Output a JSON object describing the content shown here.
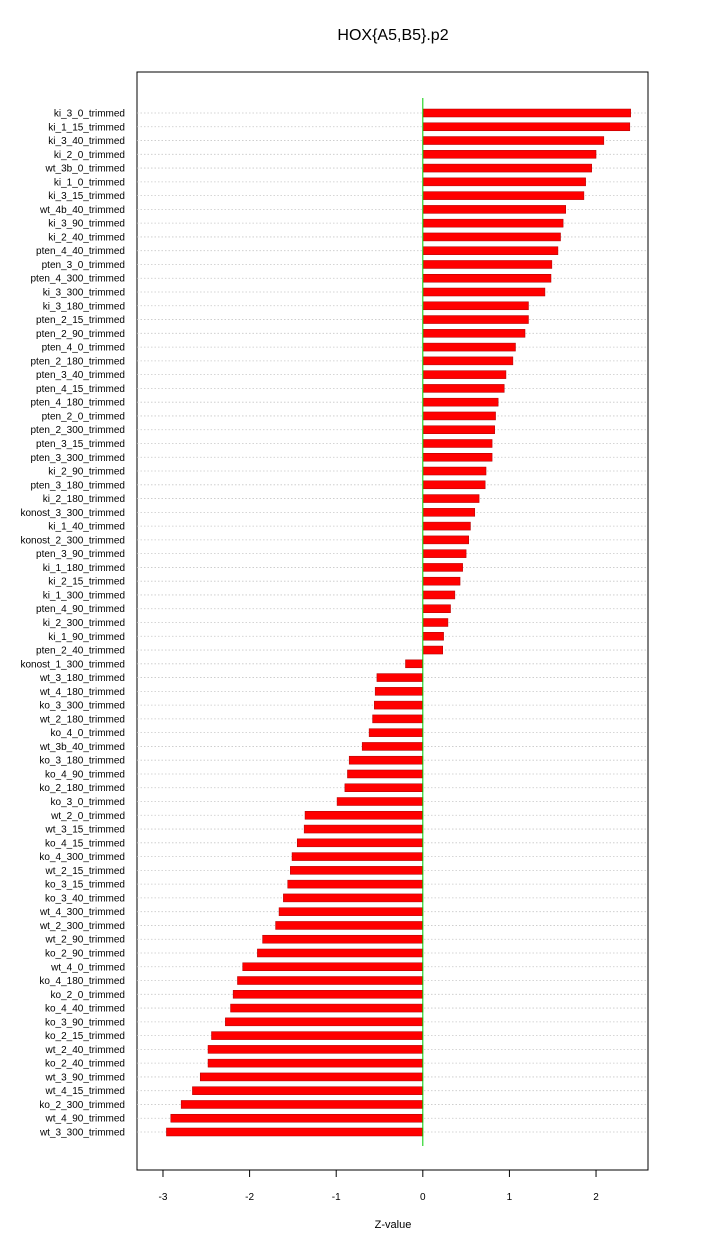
{
  "chart_data": {
    "type": "bar",
    "orientation": "horizontal",
    "title": "HOX{A5,B5}.p2",
    "xlabel": "Z-value",
    "xlim": [
      -3.3,
      2.6
    ],
    "xticks": [
      -3,
      -2,
      -1,
      0,
      1,
      2
    ],
    "grid": "horizontal-dotted",
    "colors": {
      "bar": "#ff0000",
      "bar_edge": "#aa0000",
      "zero_line": "#00cc00",
      "grid": "#c8c8c8"
    },
    "categories": [
      "ki_3_0_trimmed",
      "ki_1_15_trimmed",
      "ki_3_40_trimmed",
      "ki_2_0_trimmed",
      "wt_3b_0_trimmed",
      "ki_1_0_trimmed",
      "ki_3_15_trimmed",
      "wt_4b_40_trimmed",
      "ki_3_90_trimmed",
      "ki_2_40_trimmed",
      "pten_4_40_trimmed",
      "pten_3_0_trimmed",
      "pten_4_300_trimmed",
      "ki_3_300_trimmed",
      "ki_3_180_trimmed",
      "pten_2_15_trimmed",
      "pten_2_90_trimmed",
      "pten_4_0_trimmed",
      "pten_2_180_trimmed",
      "pten_3_40_trimmed",
      "pten_4_15_trimmed",
      "pten_4_180_trimmed",
      "pten_2_0_trimmed",
      "pten_2_300_trimmed",
      "pten_3_15_trimmed",
      "pten_3_300_trimmed",
      "ki_2_90_trimmed",
      "pten_3_180_trimmed",
      "ki_2_180_trimmed",
      "konost_3_300_trimmed",
      "ki_1_40_trimmed",
      "konost_2_300_trimmed",
      "pten_3_90_trimmed",
      "ki_1_180_trimmed",
      "ki_2_15_trimmed",
      "ki_1_300_trimmed",
      "pten_4_90_trimmed",
      "ki_2_300_trimmed",
      "ki_1_90_trimmed",
      "pten_2_40_trimmed",
      "konost_1_300_trimmed",
      "wt_3_180_trimmed",
      "wt_4_180_trimmed",
      "ko_3_300_trimmed",
      "wt_2_180_trimmed",
      "ko_4_0_trimmed",
      "wt_3b_40_trimmed",
      "ko_3_180_trimmed",
      "ko_4_90_trimmed",
      "ko_2_180_trimmed",
      "ko_3_0_trimmed",
      "wt_2_0_trimmed",
      "wt_3_15_trimmed",
      "ko_4_15_trimmed",
      "ko_4_300_trimmed",
      "wt_2_15_trimmed",
      "ko_3_15_trimmed",
      "ko_3_40_trimmed",
      "wt_4_300_trimmed",
      "wt_2_300_trimmed",
      "wt_2_90_trimmed",
      "ko_2_90_trimmed",
      "wt_4_0_trimmed",
      "ko_4_180_trimmed",
      "ko_2_0_trimmed",
      "ko_4_40_trimmed",
      "ko_3_90_trimmed",
      "ko_2_15_trimmed",
      "wt_2_40_trimmed",
      "ko_2_40_trimmed",
      "wt_3_90_trimmed",
      "wt_4_15_trimmed",
      "ko_2_300_trimmed",
      "wt_4_90_trimmed",
      "wt_3_300_trimmed"
    ],
    "values": [
      2.4,
      2.39,
      2.09,
      2.0,
      1.95,
      1.88,
      1.86,
      1.65,
      1.62,
      1.59,
      1.56,
      1.49,
      1.48,
      1.41,
      1.22,
      1.22,
      1.18,
      1.07,
      1.04,
      0.96,
      0.94,
      0.87,
      0.84,
      0.83,
      0.8,
      0.8,
      0.73,
      0.72,
      0.65,
      0.6,
      0.55,
      0.53,
      0.5,
      0.46,
      0.43,
      0.37,
      0.32,
      0.29,
      0.24,
      0.23,
      -0.2,
      -0.53,
      -0.55,
      -0.56,
      -0.58,
      -0.62,
      -0.7,
      -0.85,
      -0.87,
      -0.9,
      -0.99,
      -1.36,
      -1.37,
      -1.45,
      -1.51,
      -1.53,
      -1.56,
      -1.61,
      -1.66,
      -1.7,
      -1.85,
      -1.91,
      -2.08,
      -2.14,
      -2.19,
      -2.22,
      -2.28,
      -2.44,
      -2.48,
      -2.48,
      -2.57,
      -2.66,
      -2.79,
      -2.91,
      -2.96
    ]
  }
}
